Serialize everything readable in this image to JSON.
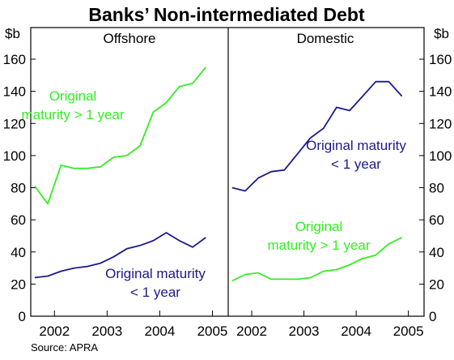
{
  "chart_data": {
    "type": "line",
    "title": "Banks’ Non-intermediated Debt",
    "source": "Source: APRA",
    "y_unit_left": "$b",
    "y_unit_right": "$b",
    "ylim": [
      0,
      160
    ],
    "yticks": [
      0,
      20,
      40,
      60,
      80,
      100,
      120,
      140,
      160
    ],
    "xlim": [
      2001.55,
      2005.3
    ],
    "xticks": [
      2002,
      2003,
      2004,
      2005
    ],
    "grid": false,
    "colors": {
      "long": "#33ee22",
      "short": "#1a1a8c"
    },
    "panels": [
      {
        "name": "Offshore",
        "series": [
          {
            "key": "long",
            "x": [
              2001.625,
              2001.875,
              2002.125,
              2002.375,
              2002.625,
              2002.875,
              2003.125,
              2003.375,
              2003.625,
              2003.875,
              2004.125,
              2004.375,
              2004.625,
              2004.875
            ],
            "values": [
              81,
              70,
              94,
              92,
              92,
              93,
              99,
              100,
              106,
              127,
              133,
              143,
              145,
              155
            ]
          },
          {
            "key": "short",
            "x": [
              2001.625,
              2001.875,
              2002.125,
              2002.375,
              2002.625,
              2002.875,
              2003.125,
              2003.375,
              2003.625,
              2003.875,
              2004.125,
              2004.375,
              2004.625,
              2004.875
            ],
            "values": [
              24,
              25,
              28,
              30,
              31,
              33,
              37,
              42,
              44,
              47,
              52,
              47,
              43,
              49
            ]
          }
        ]
      },
      {
        "name": "Domestic",
        "series": [
          {
            "key": "short",
            "x": [
              2001.625,
              2001.875,
              2002.125,
              2002.375,
              2002.625,
              2002.875,
              2003.125,
              2003.375,
              2003.625,
              2003.875,
              2004.125,
              2004.375,
              2004.625,
              2004.875
            ],
            "values": [
              80,
              78,
              86,
              90,
              91,
              101,
              111,
              117,
              130,
              128,
              137,
              146,
              146,
              137
            ]
          },
          {
            "key": "long",
            "x": [
              2001.625,
              2001.875,
              2002.125,
              2002.375,
              2002.625,
              2002.875,
              2003.125,
              2003.375,
              2003.625,
              2003.875,
              2004.125,
              2004.375,
              2004.625,
              2004.875
            ],
            "values": [
              22,
              26,
              27,
              23,
              23,
              23,
              24,
              28,
              29,
              32,
              36,
              38,
              45,
              49
            ]
          }
        ]
      }
    ],
    "annotations": [
      {
        "panel": 0,
        "key": "long",
        "lines": [
          "Original",
          "maturity > 1 year"
        ]
      },
      {
        "panel": 0,
        "key": "short",
        "lines": [
          "Original maturity",
          "< 1 year"
        ]
      },
      {
        "panel": 1,
        "key": "short",
        "lines": [
          "Original maturity",
          "< 1 year"
        ]
      },
      {
        "panel": 1,
        "key": "long",
        "lines": [
          "Original",
          "maturity > 1 year"
        ]
      }
    ]
  }
}
